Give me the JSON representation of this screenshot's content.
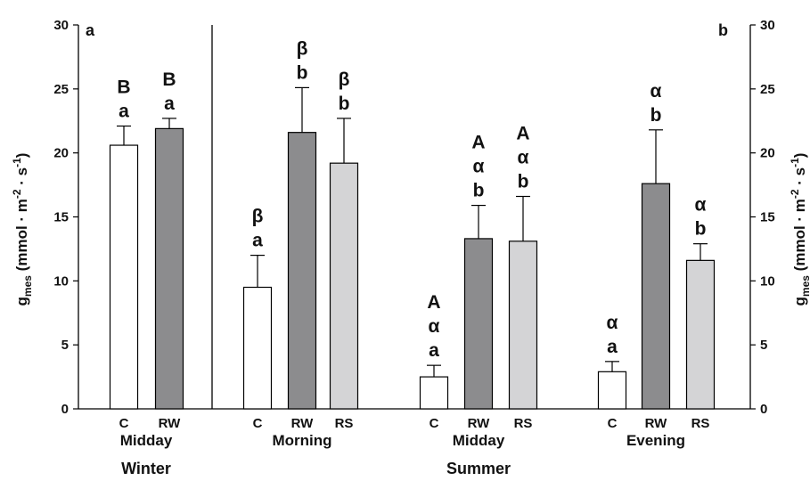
{
  "chart_data": {
    "type": "bar",
    "panel_labels": [
      "a",
      "b"
    ],
    "ylim": [
      0,
      30
    ],
    "yticks": [
      0,
      5,
      10,
      15,
      20,
      25,
      30
    ],
    "ylabel_main": "g",
    "ylabel_sub": "mes",
    "ylabel_unit": " (mmol · m",
    "ylabel_exp1": "-2",
    "ylabel_mid": " · s",
    "ylabel_exp2": "-1",
    "ylabel_close": ")",
    "series_colors": {
      "C": "#ffffff",
      "RW": "#8c8c8e",
      "RS": "#d4d4d6"
    },
    "groups": [
      {
        "period": "Midday",
        "season": "Winter",
        "bars": [
          {
            "category": "C",
            "value": 20.6,
            "error": 1.5,
            "labels": [
              "B",
              "a"
            ]
          },
          {
            "category": "RW",
            "value": 21.9,
            "error": 0.8,
            "labels": [
              "B",
              "a"
            ]
          }
        ]
      },
      {
        "period": "Morning",
        "season": "Summer",
        "bars": [
          {
            "category": "C",
            "value": 9.5,
            "error": 2.5,
            "labels": [
              "β",
              "a"
            ]
          },
          {
            "category": "RW",
            "value": 21.6,
            "error": 3.5,
            "labels": [
              "β",
              "b"
            ]
          },
          {
            "category": "RS",
            "value": 19.2,
            "error": 3.5,
            "labels": [
              "β",
              "b"
            ]
          }
        ]
      },
      {
        "period": "Midday",
        "season": "Summer",
        "bars": [
          {
            "category": "C",
            "value": 2.5,
            "error": 0.9,
            "labels": [
              "A",
              "α",
              "a"
            ]
          },
          {
            "category": "RW",
            "value": 13.3,
            "error": 2.6,
            "labels": [
              "A",
              "α",
              "b"
            ]
          },
          {
            "category": "RS",
            "value": 13.1,
            "error": 3.5,
            "labels": [
              "A",
              "α",
              "b"
            ]
          }
        ]
      },
      {
        "period": "Evening",
        "season": "Summer",
        "bars": [
          {
            "category": "C",
            "value": 2.9,
            "error": 0.8,
            "labels": [
              "α",
              "a"
            ]
          },
          {
            "category": "RW",
            "value": 17.6,
            "error": 4.2,
            "labels": [
              "α",
              "b"
            ]
          },
          {
            "category": "RS",
            "value": 11.6,
            "error": 1.3,
            "labels": [
              "α",
              "b"
            ]
          }
        ]
      }
    ],
    "seasons": [
      "Winter",
      "Summer"
    ]
  }
}
